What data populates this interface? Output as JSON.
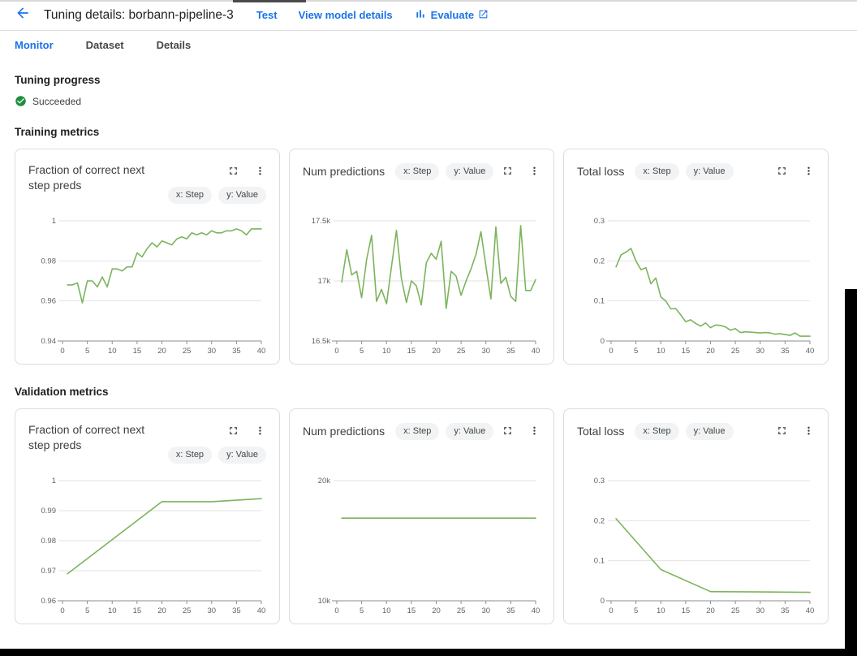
{
  "header": {
    "title": "Tuning details: borbann-pipeline-3",
    "back_icon": "arrow-back-icon",
    "actions": [
      {
        "label": "Test"
      },
      {
        "label": "View model details"
      },
      {
        "label": "Evaluate",
        "leading_icon": "bar-chart-icon",
        "trailing_icon": "open-in-new-icon"
      }
    ]
  },
  "tabs": [
    {
      "label": "Monitor",
      "active": true
    },
    {
      "label": "Dataset",
      "active": false
    },
    {
      "label": "Details",
      "active": false
    }
  ],
  "progress": {
    "heading": "Tuning progress",
    "status": "Succeeded",
    "status_icon": "check-circle-icon"
  },
  "chips": {
    "x": "x: Step",
    "y": "y: Value"
  },
  "sections": [
    {
      "heading": "Training metrics",
      "chart_indexes": [
        0,
        1,
        2
      ]
    },
    {
      "heading": "Validation metrics",
      "chart_indexes": [
        3,
        4,
        5
      ]
    }
  ],
  "colors": {
    "accent_blue": "#1a73e8",
    "line_green": "#7cb45c",
    "success_green": "#1e8e3e",
    "grid": "#e2e2e2",
    "axis": "#8a8f94",
    "chip_bg": "#f1f3f4",
    "card_border": "#dadce0"
  },
  "chart_data": [
    {
      "type": "line",
      "section": "Training metrics",
      "title": "Fraction of correct next step preds",
      "title_wrap": true,
      "xlabel": "Step",
      "ylabel": "Value",
      "xlim": [
        0,
        40
      ],
      "xticks": [
        0,
        5,
        10,
        15,
        20,
        25,
        30,
        35,
        40
      ],
      "ylim": [
        0.94,
        1.0
      ],
      "yticks": [
        {
          "v": 0.94,
          "label": "0.94"
        },
        {
          "v": 0.96,
          "label": "0.96"
        },
        {
          "v": 0.98,
          "label": "0.98"
        },
        {
          "v": 1.0,
          "label": "1"
        }
      ],
      "x": [
        1,
        2,
        3,
        4,
        5,
        6,
        7,
        8,
        9,
        10,
        11,
        12,
        13,
        14,
        15,
        16,
        17,
        18,
        19,
        20,
        21,
        22,
        23,
        24,
        25,
        26,
        27,
        28,
        29,
        30,
        31,
        32,
        33,
        34,
        35,
        36,
        37,
        38,
        39,
        40
      ],
      "y": [
        0.968,
        0.968,
        0.969,
        0.959,
        0.97,
        0.97,
        0.967,
        0.972,
        0.967,
        0.976,
        0.976,
        0.975,
        0.977,
        0.977,
        0.984,
        0.982,
        0.986,
        0.989,
        0.987,
        0.99,
        0.989,
        0.988,
        0.991,
        0.992,
        0.991,
        0.994,
        0.993,
        0.994,
        0.993,
        0.995,
        0.994,
        0.994,
        0.995,
        0.995,
        0.996,
        0.995,
        0.993,
        0.996,
        0.996,
        0.996
      ]
    },
    {
      "type": "line",
      "section": "Training metrics",
      "title": "Num predictions",
      "title_wrap": false,
      "xlabel": "Step",
      "ylabel": "Value",
      "xlim": [
        0,
        40
      ],
      "xticks": [
        0,
        5,
        10,
        15,
        20,
        25,
        30,
        35,
        40
      ],
      "ylim": [
        16500,
        17500
      ],
      "yticks": [
        {
          "v": 16500,
          "label": "16.5k"
        },
        {
          "v": 17000,
          "label": "17k"
        },
        {
          "v": 17500,
          "label": "17.5k"
        }
      ],
      "x": [
        1,
        2,
        3,
        4,
        5,
        6,
        7,
        8,
        9,
        10,
        11,
        12,
        13,
        14,
        15,
        16,
        17,
        18,
        19,
        20,
        21,
        22,
        23,
        24,
        25,
        26,
        27,
        28,
        29,
        30,
        31,
        32,
        33,
        34,
        35,
        36,
        37,
        38,
        39,
        40
      ],
      "y": [
        16990,
        17260,
        17050,
        17080,
        16860,
        17180,
        17380,
        16830,
        16930,
        16810,
        17120,
        17420,
        17020,
        16820,
        17000,
        16960,
        16800,
        17150,
        17230,
        17180,
        17330,
        16770,
        17080,
        17040,
        16880,
        17000,
        17100,
        17220,
        17410,
        17120,
        16850,
        17450,
        16980,
        17030,
        16870,
        16830,
        17460,
        16920,
        16920,
        17010
      ]
    },
    {
      "type": "line",
      "section": "Training metrics",
      "title": "Total loss",
      "title_wrap": false,
      "xlabel": "Step",
      "ylabel": "Value",
      "xlim": [
        0,
        40
      ],
      "xticks": [
        0,
        5,
        10,
        15,
        20,
        25,
        30,
        35,
        40
      ],
      "ylim": [
        0,
        0.3
      ],
      "yticks": [
        {
          "v": 0,
          "label": "0"
        },
        {
          "v": 0.1,
          "label": "0.1"
        },
        {
          "v": 0.2,
          "label": "0.2"
        },
        {
          "v": 0.3,
          "label": "0.3"
        }
      ],
      "x": [
        1,
        2,
        3,
        4,
        5,
        6,
        7,
        8,
        9,
        10,
        11,
        12,
        13,
        14,
        15,
        16,
        17,
        18,
        19,
        20,
        21,
        22,
        23,
        24,
        25,
        26,
        27,
        28,
        29,
        30,
        31,
        32,
        33,
        34,
        35,
        36,
        37,
        38,
        39,
        40
      ],
      "y": [
        0.185,
        0.215,
        0.222,
        0.231,
        0.2,
        0.178,
        0.183,
        0.143,
        0.157,
        0.11,
        0.1,
        0.08,
        0.081,
        0.065,
        0.048,
        0.053,
        0.044,
        0.037,
        0.045,
        0.033,
        0.04,
        0.039,
        0.035,
        0.027,
        0.031,
        0.021,
        0.023,
        0.022,
        0.021,
        0.02,
        0.021,
        0.02,
        0.017,
        0.018,
        0.016,
        0.014,
        0.02,
        0.012,
        0.012,
        0.012
      ]
    },
    {
      "type": "line",
      "section": "Validation metrics",
      "title": "Fraction of correct next step preds",
      "title_wrap": true,
      "xlabel": "Step",
      "ylabel": "Value",
      "xlim": [
        0,
        40
      ],
      "xticks": [
        0,
        5,
        10,
        15,
        20,
        25,
        30,
        35,
        40
      ],
      "ylim": [
        0.96,
        1.0
      ],
      "yticks": [
        {
          "v": 0.96,
          "label": "0.96"
        },
        {
          "v": 0.97,
          "label": "0.97"
        },
        {
          "v": 0.98,
          "label": "0.98"
        },
        {
          "v": 0.99,
          "label": "0.99"
        },
        {
          "v": 1.0,
          "label": "1"
        }
      ],
      "x": [
        1,
        20,
        30,
        40
      ],
      "y": [
        0.969,
        0.993,
        0.993,
        0.994
      ]
    },
    {
      "type": "line",
      "section": "Validation metrics",
      "title": "Num predictions",
      "title_wrap": false,
      "xlabel": "Step",
      "ylabel": "Value",
      "xlim": [
        0,
        40
      ],
      "xticks": [
        0,
        5,
        10,
        15,
        20,
        25,
        30,
        35,
        40
      ],
      "ylim": [
        10000,
        20000
      ],
      "yticks": [
        {
          "v": 10000,
          "label": "10k"
        },
        {
          "v": 20000,
          "label": "20k"
        }
      ],
      "x": [
        1,
        10,
        20,
        30,
        40
      ],
      "y": [
        16880,
        16880,
        16880,
        16880,
        16880
      ]
    },
    {
      "type": "line",
      "section": "Validation metrics",
      "title": "Total loss",
      "title_wrap": false,
      "xlabel": "Step",
      "ylabel": "Value",
      "xlim": [
        0,
        40
      ],
      "xticks": [
        0,
        5,
        10,
        15,
        20,
        25,
        30,
        35,
        40
      ],
      "ylim": [
        0,
        0.3
      ],
      "yticks": [
        {
          "v": 0,
          "label": "0"
        },
        {
          "v": 0.1,
          "label": "0.1"
        },
        {
          "v": 0.2,
          "label": "0.2"
        },
        {
          "v": 0.3,
          "label": "0.3"
        }
      ],
      "x": [
        1,
        10,
        20,
        30,
        40
      ],
      "y": [
        0.205,
        0.078,
        0.023,
        0.022,
        0.021
      ]
    }
  ]
}
